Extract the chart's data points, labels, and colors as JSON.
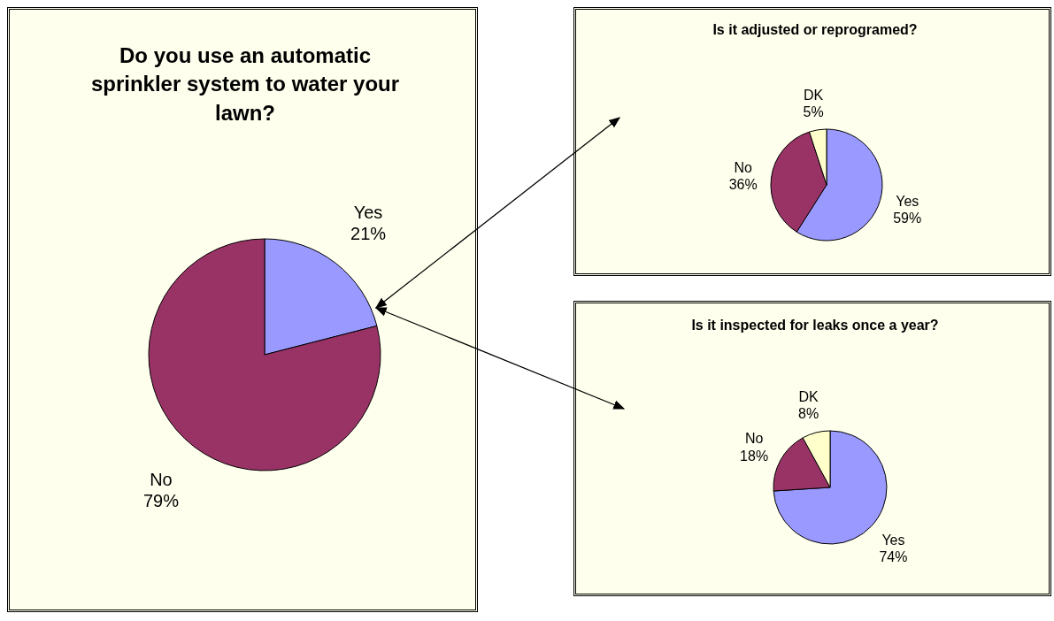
{
  "chart_data": [
    {
      "type": "pie",
      "title": "Do you use an automatic sprinkler system to water your lawn?",
      "categories": [
        "Yes",
        "No"
      ],
      "values": [
        21,
        79
      ],
      "colors": [
        "#9999ff",
        "#993366"
      ],
      "value_labels": [
        "21%",
        "79%"
      ]
    },
    {
      "type": "pie",
      "title": "Is it adjusted or reprogramed?",
      "categories": [
        "Yes",
        "No",
        "DK"
      ],
      "values": [
        59,
        36,
        5
      ],
      "colors": [
        "#9999ff",
        "#993366",
        "#ffffcc"
      ],
      "value_labels": [
        "59%",
        "36%",
        "5%"
      ]
    },
    {
      "type": "pie",
      "title": "Is it inspected for leaks once a year?",
      "categories": [
        "Yes",
        "No",
        "DK"
      ],
      "values": [
        74,
        18,
        8
      ],
      "colors": [
        "#9999ff",
        "#993366",
        "#ffffcc"
      ],
      "value_labels": [
        "74%",
        "18%",
        "8%"
      ]
    }
  ]
}
